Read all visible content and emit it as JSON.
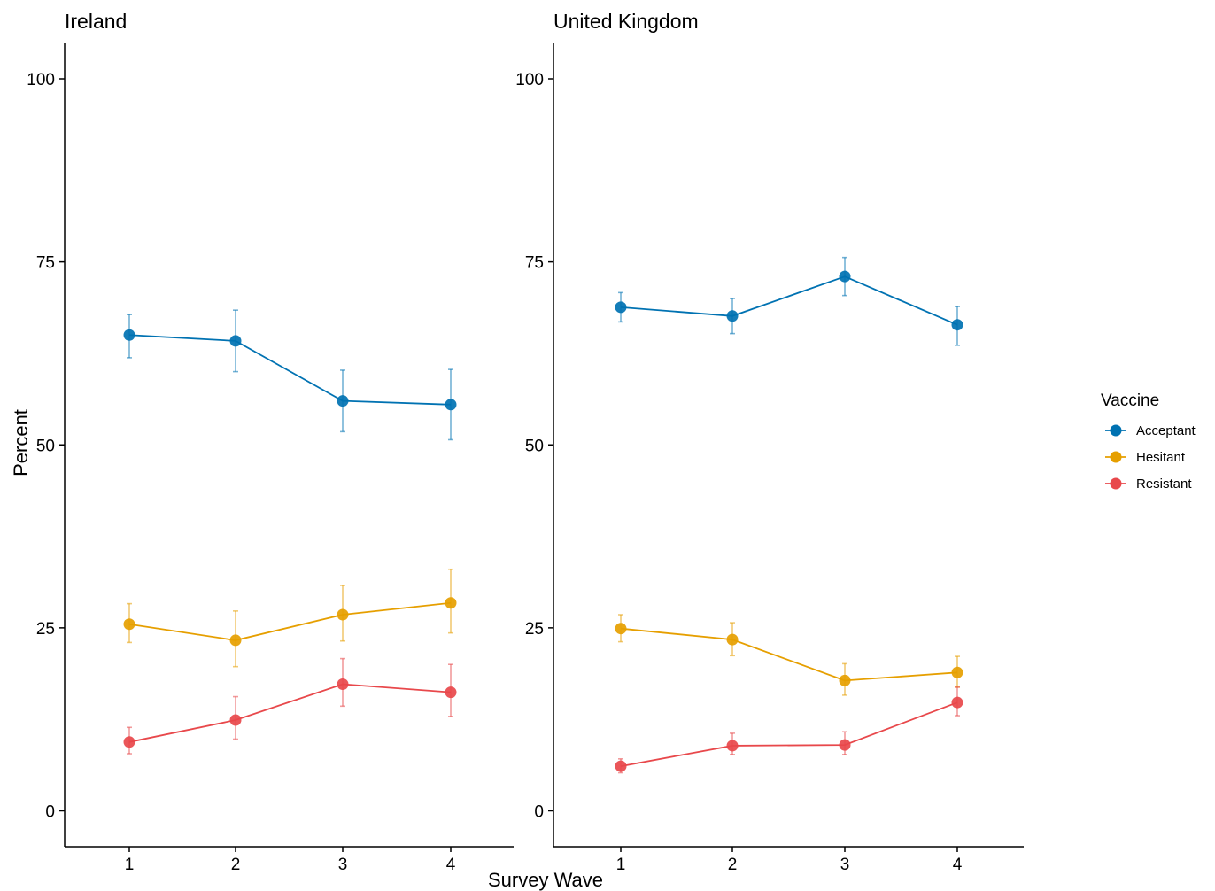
{
  "chart_data": {
    "type": "line",
    "xlabel": "Survey Wave",
    "ylabel": "Percent",
    "ylim": [
      0,
      100
    ],
    "yticks": [
      0,
      25,
      50,
      75,
      100
    ],
    "x": [
      1,
      2,
      3,
      4
    ],
    "grid": false,
    "legend": {
      "title": "Vaccine",
      "placement": "right",
      "entries": [
        {
          "name": "Acceptant",
          "color": "#0072B2"
        },
        {
          "name": "Hesitant",
          "color": "#E69F00"
        },
        {
          "name": "Resistant",
          "color": "#E8484B"
        }
      ]
    },
    "panels": [
      {
        "title": "Ireland",
        "series": [
          {
            "name": "Acceptant",
            "values": [
              65.0,
              64.2,
              56.0,
              55.5
            ],
            "lower": [
              61.9,
              60.0,
              51.8,
              50.7
            ],
            "upper": [
              67.8,
              68.4,
              60.2,
              60.3
            ]
          },
          {
            "name": "Hesitant",
            "values": [
              25.5,
              23.3,
              26.8,
              28.4
            ],
            "lower": [
              23.0,
              19.7,
              23.2,
              24.3
            ],
            "upper": [
              28.3,
              27.3,
              30.8,
              33.0
            ]
          },
          {
            "name": "Resistant",
            "values": [
              9.4,
              12.4,
              17.3,
              16.2
            ],
            "lower": [
              7.8,
              9.8,
              14.3,
              12.9
            ],
            "upper": [
              11.4,
              15.6,
              20.8,
              20.0
            ]
          }
        ]
      },
      {
        "title": "United Kingdom",
        "series": [
          {
            "name": "Acceptant",
            "values": [
              68.8,
              67.6,
              73.0,
              66.4
            ],
            "lower": [
              66.8,
              65.2,
              70.4,
              63.6
            ],
            "upper": [
              70.8,
              70.0,
              75.6,
              68.9
            ]
          },
          {
            "name": "Hesitant",
            "values": [
              24.9,
              23.4,
              17.8,
              18.9
            ],
            "lower": [
              23.1,
              21.2,
              15.8,
              16.9
            ],
            "upper": [
              26.8,
              25.7,
              20.1,
              21.1
            ]
          },
          {
            "name": "Resistant",
            "values": [
              6.1,
              8.9,
              9.0,
              14.8
            ],
            "lower": [
              5.2,
              7.7,
              7.7,
              13.0
            ],
            "upper": [
              7.1,
              10.6,
              10.8,
              16.9
            ]
          }
        ]
      }
    ]
  }
}
